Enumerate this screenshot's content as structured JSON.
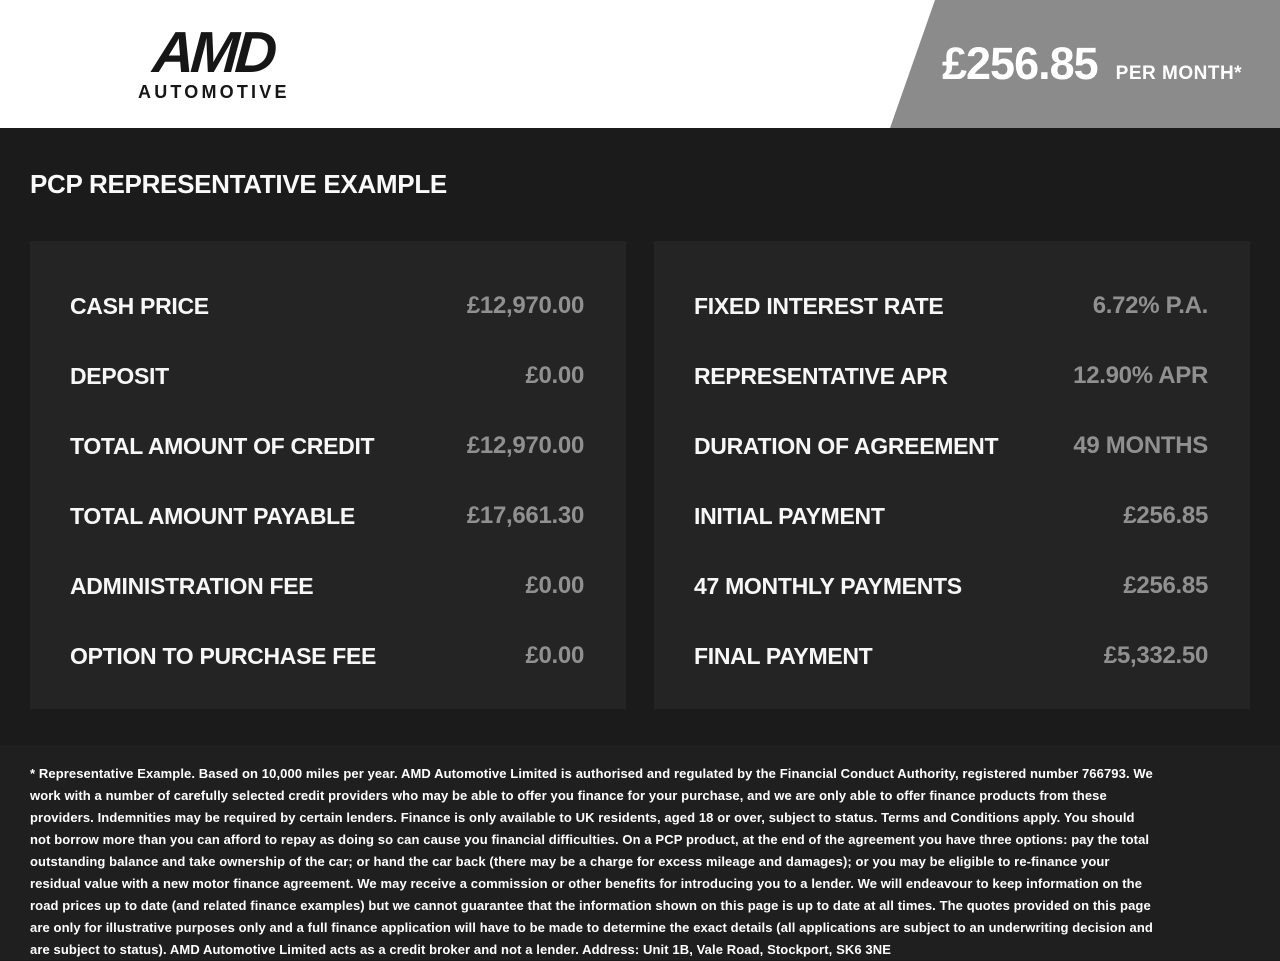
{
  "header": {
    "logo": {
      "line1": "AMD",
      "line2": "AUTOMOTIVE"
    },
    "banner": {
      "price": "£256.85",
      "suffix": "PER MONTH*"
    }
  },
  "page_title": "PCP REPRESENTATIVE EXAMPLE",
  "panels": {
    "left": {
      "rows": [
        {
          "label": "CASH PRICE",
          "value": "£12,970.00"
        },
        {
          "label": "DEPOSIT",
          "value": "£0.00"
        },
        {
          "label": "TOTAL AMOUNT OF CREDIT",
          "value": "£12,970.00"
        },
        {
          "label": "TOTAL AMOUNT PAYABLE",
          "value": "£17,661.30"
        },
        {
          "label": "ADMINISTRATION FEE",
          "value": "£0.00"
        },
        {
          "label": "OPTION TO PURCHASE FEE",
          "value": "£0.00"
        }
      ]
    },
    "right": {
      "rows": [
        {
          "label": "FIXED INTEREST RATE",
          "value": "6.72% P.A."
        },
        {
          "label": "REPRESENTATIVE APR",
          "value": "12.90% APR"
        },
        {
          "label": "DURATION OF AGREEMENT",
          "value": "49 MONTHS"
        },
        {
          "label": "INITIAL PAYMENT",
          "value": "£256.85"
        },
        {
          "label": "47 MONTHLY PAYMENTS",
          "value": "£256.85"
        },
        {
          "label": "FINAL PAYMENT",
          "value": "£5,332.50"
        }
      ]
    }
  },
  "footer": {
    "disclaimer": "* Representative Example. Based on 10,000 miles per year. AMD Automotive Limited is authorised and regulated by the Financial Conduct Authority, registered number 766793. We work with a number of carefully selected credit providers who may be able to offer you finance for your purchase, and we are only able to offer finance products from these providers. Indemnities may be required by certain lenders. Finance is only available to UK residents, aged 18 or over, subject to status. Terms and Conditions apply. You should not borrow more than you can afford to repay as doing so can cause you financial difficulties. On a PCP product, at the end of the agreement you have three options: pay the total outstanding balance and take ownership of the car; or hand the car back (there may be a charge for excess mileage and damages); or you may be eligible to re-finance your residual value with a new motor finance agreement. We may receive a commission or other benefits for introducing you to a lender. We will endeavour to keep information on the road prices up to date (and related finance examples) but we cannot guarantee that the information shown on this page is up to date at all times. The quotes provided on this page are only for illustrative purposes only and a full finance application will have to be made to determine the exact details (all applications are subject to an underwriting decision and are subject to status). AMD Automotive Limited acts as a credit broker and not a lender. Address: Unit 1B, Vale Road, Stockport, SK6 3NE"
  },
  "colors": {
    "banner_gray": "#8b8b8b",
    "page_background": "#1b1b1b",
    "panel_background": "#242424",
    "footer_background": "#1f1f1f",
    "label_text": "#f7f7f7",
    "value_text": "#909090"
  }
}
